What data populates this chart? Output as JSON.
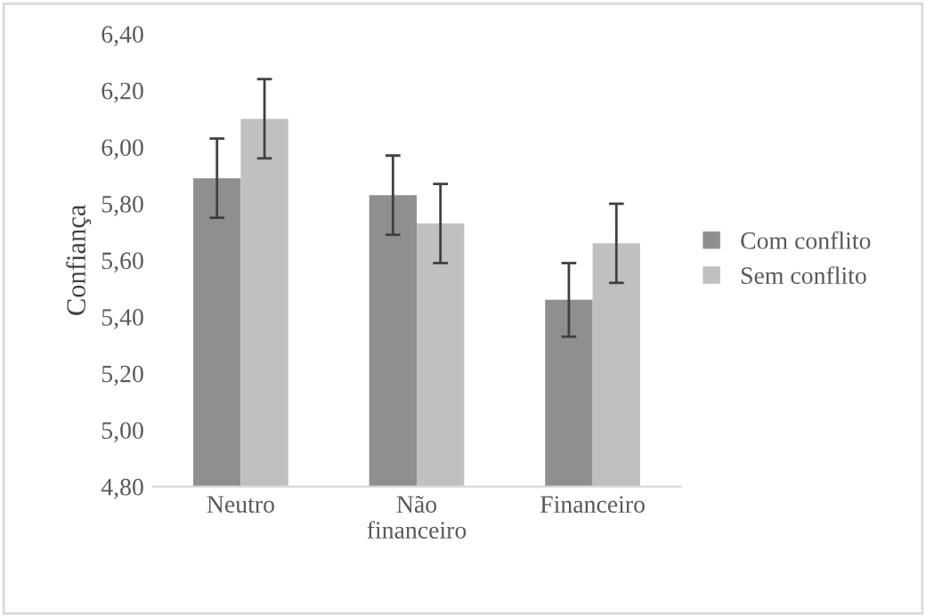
{
  "chart_data": {
    "type": "bar",
    "ylabel": "Confiança",
    "categories": [
      "Neutro",
      "Não\nfinanceiro",
      "Financeiro"
    ],
    "series": [
      {
        "name": "Com conflito",
        "color": "#8f8f8f",
        "values": [
          5.89,
          5.83,
          5.46
        ],
        "errors": [
          0.14,
          0.14,
          0.13
        ]
      },
      {
        "name": "Sem conflito",
        "color": "#c0c0c0",
        "values": [
          6.1,
          5.73,
          5.66
        ],
        "errors": [
          0.14,
          0.14,
          0.14
        ]
      }
    ],
    "ylim": [
      4.8,
      6.4
    ],
    "yticks": [
      {
        "value": 4.8,
        "label": "4,80"
      },
      {
        "value": 5.0,
        "label": "5,00"
      },
      {
        "value": 5.2,
        "label": "5,20"
      },
      {
        "value": 5.4,
        "label": "5,40"
      },
      {
        "value": 5.6,
        "label": "5,60"
      },
      {
        "value": 5.8,
        "label": "5,80"
      },
      {
        "value": 6.0,
        "label": "6,00"
      },
      {
        "value": 6.2,
        "label": "6,20"
      },
      {
        "value": 6.4,
        "label": "6,40"
      }
    ],
    "grid": false,
    "legend": "right"
  }
}
